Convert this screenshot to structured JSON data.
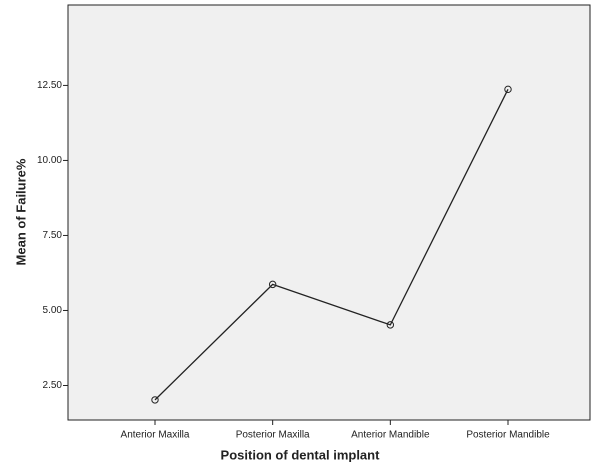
{
  "chart_data": {
    "type": "line",
    "x_label": "Position of dental implant",
    "y_label": "Mean of Failure%",
    "categories": [
      "Anterior Maxilla",
      "Posterior Maxilla",
      "Anterior Mandible",
      "Posterior Mandible"
    ],
    "values": [
      2.02,
      5.87,
      4.52,
      12.37
    ],
    "color": "#222222",
    "ylim": [
      1.35,
      15.18
    ],
    "yticks": [
      {
        "value": 2.5,
        "label": "2.50"
      },
      {
        "value": 5,
        "label": "5.00"
      },
      {
        "value": 7.5,
        "label": "7.50"
      },
      {
        "value": 10,
        "label": "10.00"
      },
      {
        "value": 12.5,
        "label": "12.50"
      }
    ]
  }
}
